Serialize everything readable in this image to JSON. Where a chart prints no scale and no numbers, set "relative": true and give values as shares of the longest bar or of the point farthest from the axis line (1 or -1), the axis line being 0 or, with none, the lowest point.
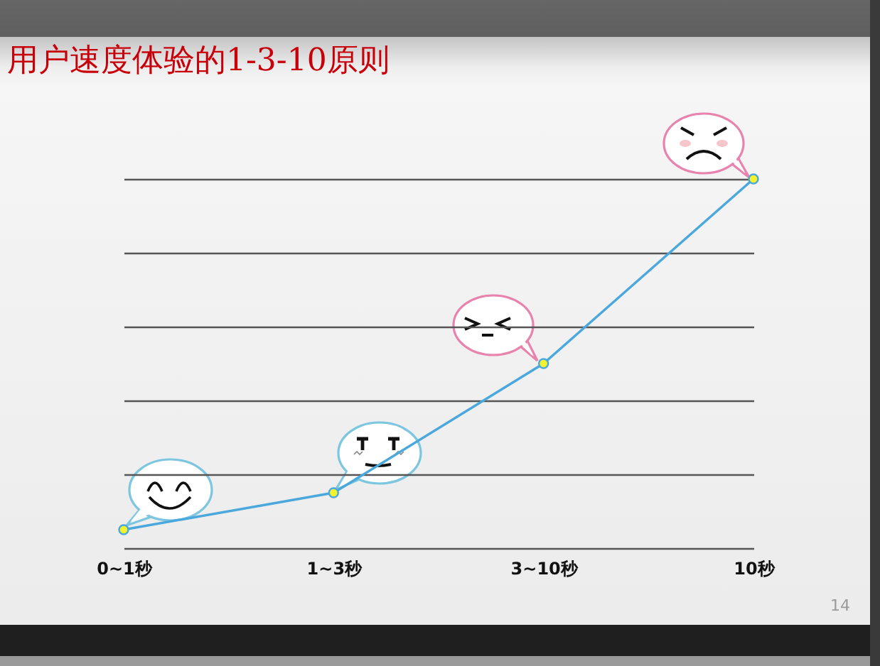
{
  "chart_data": {
    "type": "line",
    "title": "用户速度体验的1-3-10原则",
    "categories": [
      "0~1秒",
      "1~3秒",
      "3~10秒",
      "10秒"
    ],
    "relative": true,
    "series": [
      {
        "color": "#4aa8dc",
        "values": [
          0.05,
          0.15,
          0.5,
          1
        ]
      }
    ],
    "marker": "circle",
    "grid": "y",
    "annotations": [
      "14"
    ]
  }
}
